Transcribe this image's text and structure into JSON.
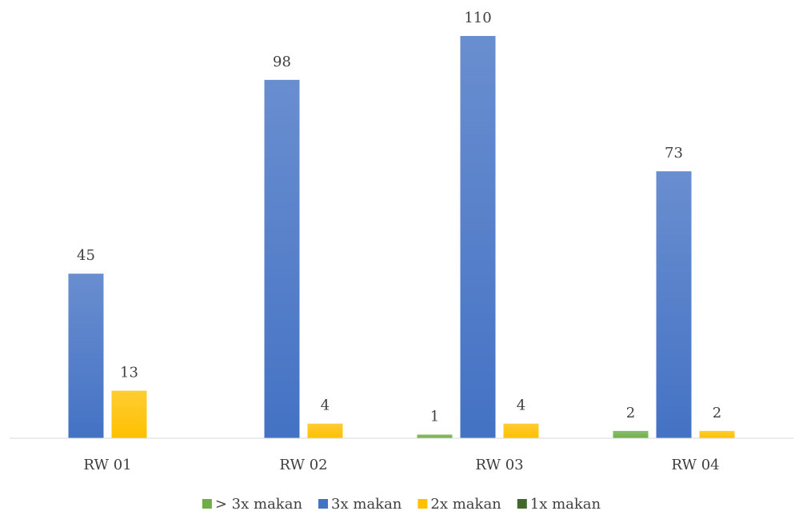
{
  "chart_data": {
    "type": "bar",
    "categories": [
      "RW 01",
      "RW 02",
      "RW 03",
      "RW 04"
    ],
    "series": [
      {
        "name": "> 3x makan",
        "color": "#70ad47",
        "values": [
          null,
          null,
          1,
          2
        ]
      },
      {
        "name": "3x makan",
        "color": "#4472c4",
        "values": [
          45,
          98,
          110,
          73
        ]
      },
      {
        "name": "2x makan",
        "color": "#ffc000",
        "values": [
          13,
          4,
          4,
          2
        ]
      },
      {
        "name": "1x makan",
        "color": "#43682b",
        "values": [
          null,
          null,
          null,
          null
        ]
      }
    ],
    "legend": "bottom"
  }
}
